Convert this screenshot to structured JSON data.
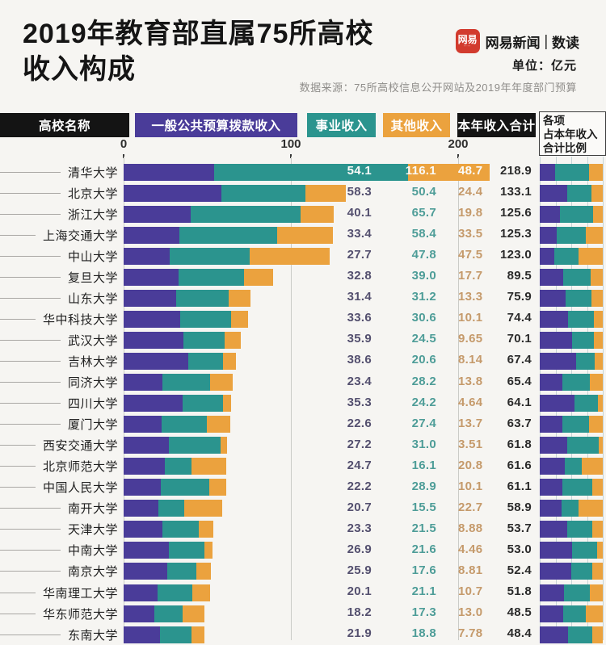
{
  "header": {
    "title_line1": "2019年教育部直属75所高校",
    "title_line2": "收入构成",
    "brand": {
      "logo_text": "网易",
      "name": "网易新闻",
      "separator": "|",
      "channel": "数读"
    },
    "unit_label": "单位：亿元",
    "source": "数据来源：75所高校信息公开网站及2019年年度部门预算"
  },
  "legend": {
    "name_label": "高校名称",
    "series": [
      {
        "label": "一般公共预算拨款收入",
        "color": "#4A3C99"
      },
      {
        "label": "事业收入",
        "color": "#2B948E"
      },
      {
        "label": "其他收入",
        "color": "#EBA23E"
      }
    ],
    "total_label": "本年收入合计",
    "ratio_header": [
      "各项",
      "占本年收入",
      "合计比例"
    ]
  },
  "axis": {
    "ticks": [
      "0",
      "100",
      "200"
    ],
    "tick_values": [
      0,
      100,
      200
    ]
  },
  "chart_data": {
    "type": "bar",
    "orientation": "horizontal",
    "stacked": true,
    "xlim": [
      0,
      290
    ],
    "grid": true,
    "series_names": [
      "一般公共预算拨款收入",
      "事业收入",
      "其他收入"
    ],
    "ratio_panel_note": "各项占本年收入合计比例 (100% stacked)",
    "rows": [
      {
        "name": "清华大学",
        "values": [
          "54.1",
          "116.1",
          "48.7"
        ],
        "total": "218.9"
      },
      {
        "name": "北京大学",
        "values": [
          "58.3",
          "50.4",
          "24.4"
        ],
        "total": "133.1"
      },
      {
        "name": "浙江大学",
        "values": [
          "40.1",
          "65.7",
          "19.8"
        ],
        "total": "125.6"
      },
      {
        "name": "上海交通大学",
        "values": [
          "33.4",
          "58.4",
          "33.5"
        ],
        "total": "125.3"
      },
      {
        "name": "中山大学",
        "values": [
          "27.7",
          "47.8",
          "47.5"
        ],
        "total": "123.0"
      },
      {
        "name": "复旦大学",
        "values": [
          "32.8",
          "39.0",
          "17.7"
        ],
        "total": "89.5"
      },
      {
        "name": "山东大学",
        "values": [
          "31.4",
          "31.2",
          "13.3"
        ],
        "total": "75.9"
      },
      {
        "name": "华中科技大学",
        "values": [
          "33.6",
          "30.6",
          "10.1"
        ],
        "total": "74.4"
      },
      {
        "name": "武汉大学",
        "values": [
          "35.9",
          "24.5",
          "9.65"
        ],
        "total": "70.1"
      },
      {
        "name": "吉林大学",
        "values": [
          "38.6",
          "20.6",
          "8.14"
        ],
        "total": "67.4"
      },
      {
        "name": "同济大学",
        "values": [
          "23.4",
          "28.2",
          "13.8"
        ],
        "total": "65.4"
      },
      {
        "name": "四川大学",
        "values": [
          "35.3",
          "24.2",
          "4.64"
        ],
        "total": "64.1"
      },
      {
        "name": "厦门大学",
        "values": [
          "22.6",
          "27.4",
          "13.7"
        ],
        "total": "63.7"
      },
      {
        "name": "西安交通大学",
        "values": [
          "27.2",
          "31.0",
          "3.51"
        ],
        "total": "61.8"
      },
      {
        "name": "北京师范大学",
        "values": [
          "24.7",
          "16.1",
          "20.8"
        ],
        "total": "61.6"
      },
      {
        "name": "中国人民大学",
        "values": [
          "22.2",
          "28.9",
          "10.1"
        ],
        "total": "61.1"
      },
      {
        "name": "南开大学",
        "values": [
          "20.7",
          "15.5",
          "22.7"
        ],
        "total": "58.9"
      },
      {
        "name": "天津大学",
        "values": [
          "23.3",
          "21.5",
          "8.88"
        ],
        "total": "53.7"
      },
      {
        "name": "中南大学",
        "values": [
          "26.9",
          "21.6",
          "4.46"
        ],
        "total": "53.0"
      },
      {
        "name": "南京大学",
        "values": [
          "25.9",
          "17.6",
          "8.81"
        ],
        "total": "52.4"
      },
      {
        "name": "华南理工大学",
        "values": [
          "20.1",
          "21.1",
          "10.7"
        ],
        "total": "51.8"
      },
      {
        "name": "华东师范大学",
        "values": [
          "18.2",
          "17.3",
          "13.0"
        ],
        "total": "48.5"
      },
      {
        "name": "东南大学",
        "values": [
          "21.9",
          "18.8",
          "7.78"
        ],
        "total": "48.4"
      }
    ]
  }
}
